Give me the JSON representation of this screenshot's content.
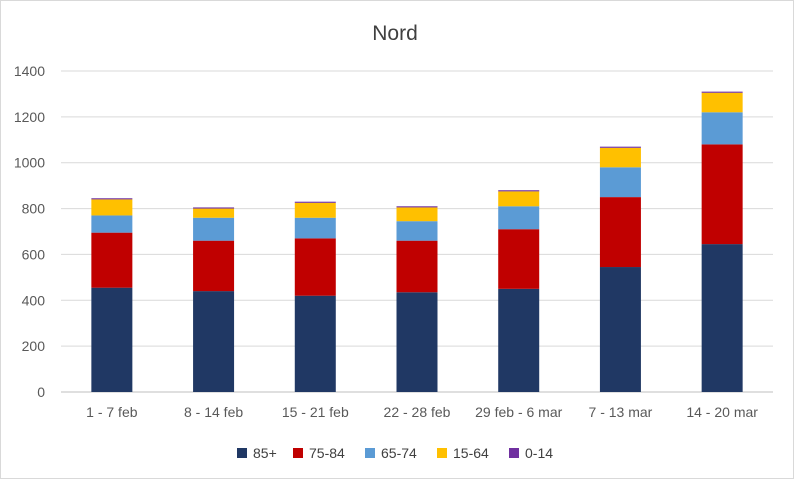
{
  "chart_data": {
    "type": "bar",
    "stacked": true,
    "title": "Nord",
    "categories": [
      "1 - 7 feb",
      "8 - 14 feb",
      "15 - 21 feb",
      "22 - 28 feb",
      "29 feb - 6 mar",
      "7 - 13 mar",
      "14 - 20 mar"
    ],
    "ylim": [
      0,
      1400
    ],
    "yticks": [
      0,
      200,
      400,
      600,
      800,
      1000,
      1200,
      1400
    ],
    "grid": true,
    "legend_position": "bottom",
    "series": [
      {
        "name": "85+",
        "color": "#203864",
        "values": [
          455,
          440,
          420,
          435,
          450,
          545,
          645
        ]
      },
      {
        "name": "75-84",
        "color": "#c00000",
        "values": [
          240,
          220,
          250,
          225,
          260,
          305,
          435
        ]
      },
      {
        "name": "65-74",
        "color": "#5b9bd5",
        "values": [
          75,
          100,
          90,
          85,
          100,
          130,
          140
        ]
      },
      {
        "name": "15-64",
        "color": "#ffc000",
        "values": [
          70,
          40,
          65,
          60,
          65,
          85,
          85
        ]
      },
      {
        "name": "0-14",
        "color": "#7030a0",
        "values": [
          5,
          5,
          5,
          5,
          5,
          5,
          5
        ]
      }
    ]
  }
}
